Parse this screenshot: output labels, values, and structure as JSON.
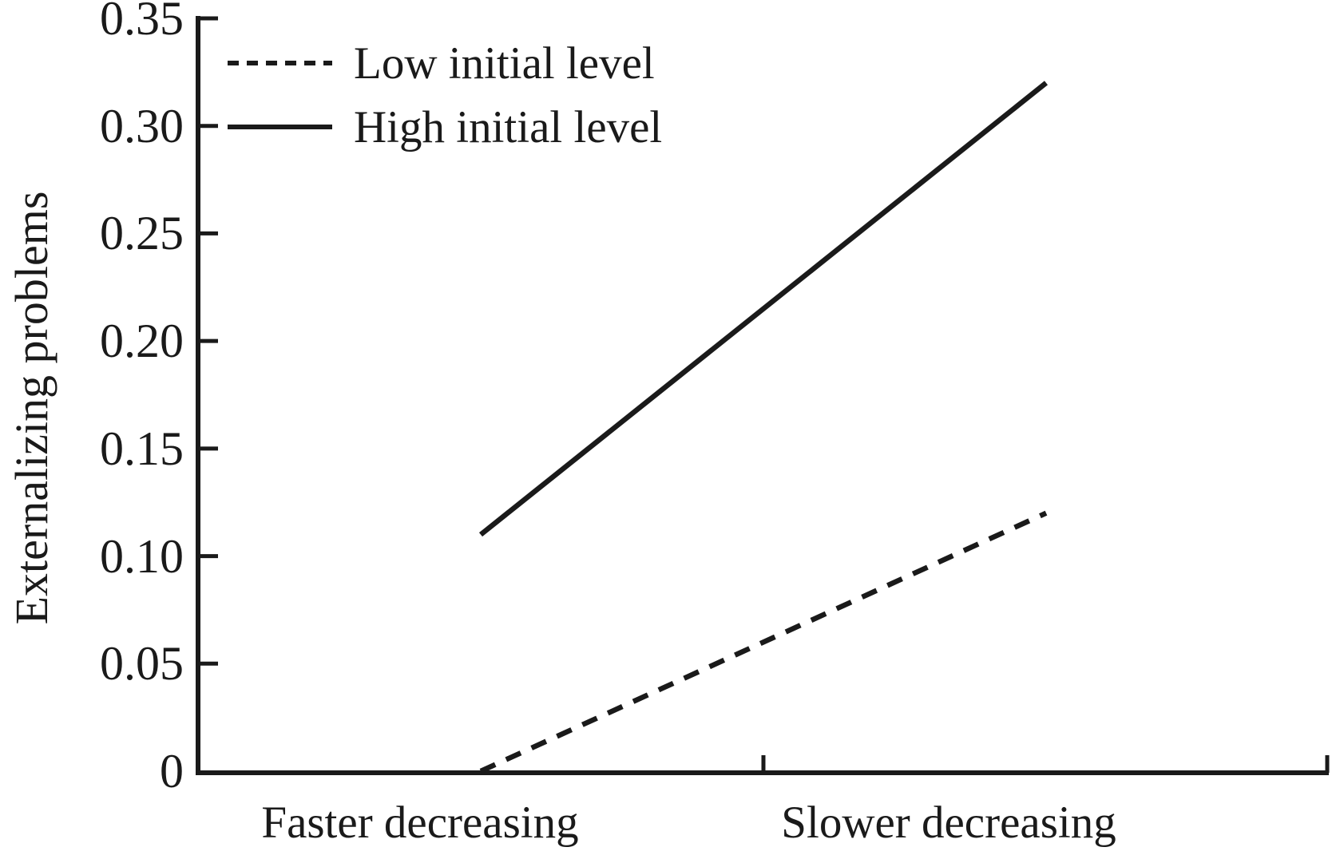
{
  "figure": {
    "background": "#ffffff",
    "ink_color": "#1a1a1a"
  },
  "chart_data": {
    "type": "line",
    "title": "",
    "xlabel": "",
    "ylabel": "Externalizing problems",
    "categories": [
      "Faster decreasing",
      "Slower decreasing"
    ],
    "series": [
      {
        "name": "Low initial level",
        "style": "dashed",
        "values": [
          0.0,
          0.12
        ]
      },
      {
        "name": "High initial level",
        "style": "solid",
        "values": [
          0.11,
          0.32
        ]
      }
    ],
    "ylim": [
      0,
      0.35
    ],
    "ytick_values": [
      0,
      0.05,
      0.1,
      0.15,
      0.2,
      0.25,
      0.3,
      0.35
    ],
    "ytick_labels": [
      "0",
      "0.05",
      "0.10",
      "0.15",
      "0.20",
      "0.25",
      "0.30",
      "0.35"
    ],
    "grid": false,
    "legend_position": "upper-left"
  }
}
